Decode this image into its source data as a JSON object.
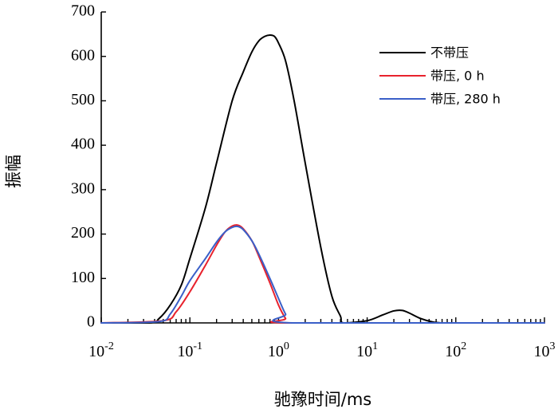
{
  "chart_data": {
    "type": "line",
    "title": "",
    "xlabel": "驰豫时间/ms",
    "ylabel": "振幅",
    "x_scale": "log",
    "xlim": [
      0.01,
      1000
    ],
    "ylim": [
      0,
      700
    ],
    "y_ticks": [
      "0",
      "100",
      "200",
      "300",
      "400",
      "500",
      "600",
      "700"
    ],
    "x_ticks": [
      {
        "base": "10",
        "exp": "-2"
      },
      {
        "base": "10",
        "exp": "-1"
      },
      {
        "base": "10",
        "exp": "0"
      },
      {
        "base": "10",
        "exp": "1"
      },
      {
        "base": "10",
        "exp": "2"
      },
      {
        "base": "10",
        "exp": "3"
      }
    ],
    "grid": false,
    "legend_position": "top-right",
    "series": [
      {
        "name": "不带压",
        "color": "#000000",
        "x": [
          0.01,
          0.035,
          0.045,
          0.06,
          0.08,
          0.1,
          0.15,
          0.2,
          0.3,
          0.4,
          0.5,
          0.6,
          0.7,
          0.8,
          0.9,
          1.0,
          1.2,
          1.5,
          2.0,
          3.0,
          4.0,
          5.0,
          5.4,
          10,
          15,
          20,
          25,
          30,
          40,
          55,
          70,
          100,
          1000
        ],
        "y": [
          0,
          0,
          10,
          40,
          85,
          145,
          260,
          360,
          500,
          565,
          610,
          635,
          645,
          648,
          645,
          630,
          590,
          500,
          360,
          170,
          60,
          15,
          0,
          5,
          18,
          27,
          28,
          22,
          10,
          2,
          0,
          0,
          0
        ]
      },
      {
        "name": "带压, 0 h",
        "color": "#e8222d",
        "x": [
          0.01,
          0.05,
          0.07,
          0.1,
          0.15,
          0.2,
          0.25,
          0.3,
          0.35,
          0.4,
          0.5,
          0.6,
          0.8,
          1.0,
          1.2,
          1.35,
          1000
        ],
        "y": [
          0,
          5,
          25,
          70,
          130,
          175,
          205,
          218,
          220,
          212,
          185,
          150,
          90,
          40,
          10,
          0,
          0
        ]
      },
      {
        "name": "带压, 280 h",
        "color": "#3a5fc8",
        "x": [
          0.01,
          0.045,
          0.06,
          0.08,
          0.1,
          0.15,
          0.2,
          0.25,
          0.3,
          0.35,
          0.4,
          0.5,
          0.6,
          0.8,
          1.0,
          1.2,
          1.45,
          1000
        ],
        "y": [
          0,
          3,
          20,
          60,
          95,
          145,
          182,
          205,
          215,
          217,
          210,
          185,
          155,
          100,
          55,
          20,
          0,
          0
        ]
      }
    ]
  }
}
